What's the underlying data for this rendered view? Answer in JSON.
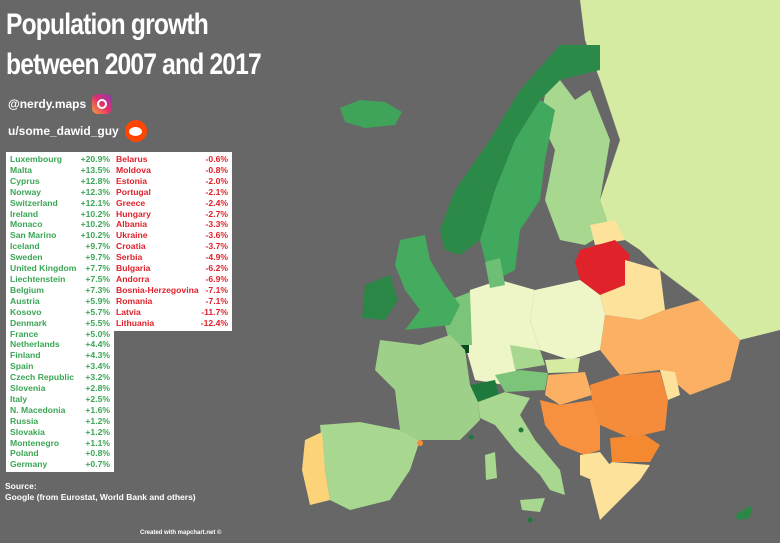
{
  "title_line1": "Population growth",
  "title_line2": "between 2007 and 2017",
  "instagram_handle": "@nerdy.maps",
  "reddit_handle": "u/some_dawid_guy",
  "colors": {
    "background": "#676767",
    "positive_text": "#3aa655",
    "negative_text": "#e0202a"
  },
  "growth": [
    {
      "country": "Luxembourg",
      "value": "+20.9%"
    },
    {
      "country": "Malta",
      "value": "+13.5%"
    },
    {
      "country": "Cyprus",
      "value": "+12.8%"
    },
    {
      "country": "Norway",
      "value": "+12.3%"
    },
    {
      "country": "Switzerland",
      "value": "+12.1%"
    },
    {
      "country": "Ireland",
      "value": "+10.2%"
    },
    {
      "country": "Monaco",
      "value": "+10.2%"
    },
    {
      "country": "San Marino",
      "value": "+10.2%"
    },
    {
      "country": "Iceland",
      "value": "+9.7%"
    },
    {
      "country": "Sweden",
      "value": "+9.7%"
    },
    {
      "country": "United Kingdom",
      "value": "+7.7%"
    },
    {
      "country": "Liechtenstein",
      "value": "+7.5%"
    },
    {
      "country": "Belgium",
      "value": "+7.3%"
    },
    {
      "country": "Austria",
      "value": "+5.9%"
    },
    {
      "country": "Kosovo",
      "value": "+5.7%"
    },
    {
      "country": "Denmark",
      "value": "+5.5%"
    },
    {
      "country": "France",
      "value": "+5.0%"
    },
    {
      "country": "Netherlands",
      "value": "+4.4%"
    },
    {
      "country": "Finland",
      "value": "+4.3%"
    },
    {
      "country": "Spain",
      "value": "+3.4%"
    },
    {
      "country": "Czech Republic",
      "value": "+3.2%"
    },
    {
      "country": "Slovenia",
      "value": "+2.8%"
    },
    {
      "country": "Italy",
      "value": "+2.5%"
    },
    {
      "country": "N. Macedonia",
      "value": "+1.6%"
    },
    {
      "country": "Russia",
      "value": "+1.2%"
    },
    {
      "country": "Slovakia",
      "value": "+1.2%"
    },
    {
      "country": "Montenegro",
      "value": "+1.1%"
    },
    {
      "country": "Poland",
      "value": "+0.8%"
    },
    {
      "country": "Germany",
      "value": "+0.7%"
    }
  ],
  "decline": [
    {
      "country": "Belarus",
      "value": "-0.6%"
    },
    {
      "country": "Moldova",
      "value": "-0.8%"
    },
    {
      "country": "Estonia",
      "value": "-2.0%"
    },
    {
      "country": "Portugal",
      "value": "-2.1%"
    },
    {
      "country": "Greece",
      "value": "-2.4%"
    },
    {
      "country": "Hungary",
      "value": "-2.7%"
    },
    {
      "country": "Albania",
      "value": "-3.3%"
    },
    {
      "country": "Ukraine",
      "value": "-3.6%"
    },
    {
      "country": "Croatia",
      "value": "-3.7%"
    },
    {
      "country": "Serbia",
      "value": "-4.9%"
    },
    {
      "country": "Bulgaria",
      "value": "-6.2%"
    },
    {
      "country": "Andorra",
      "value": "-6.9%"
    },
    {
      "country": "Bosnia-Herzegovina",
      "value": "-7.1%"
    },
    {
      "country": "Romania",
      "value": "-7.1%"
    },
    {
      "country": "Latvia",
      "value": "-11.7%"
    },
    {
      "country": "Lithuania",
      "value": "-12.4%"
    }
  ],
  "source_label": "Source:",
  "source_text": "Google (from Eurostat, World Bank and others)",
  "credit": "Created with mapchart.net ©"
}
